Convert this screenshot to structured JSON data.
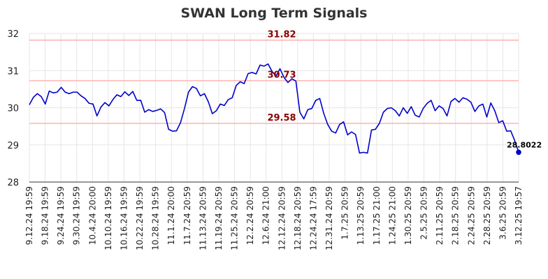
{
  "chart_data": {
    "type": "line",
    "title": "SWAN Long Term Signals",
    "xlabel": "",
    "ylabel": "",
    "ylim": [
      28,
      32
    ],
    "yticks": [
      "28",
      "29",
      "30",
      "31",
      "32"
    ],
    "xticks": [
      "9.12.24 19:59",
      "9.18.24 19:59",
      "9.24.24 19:59",
      "9.30.24 19:59",
      "10.4.24 20:00",
      "10.10.24 19:59",
      "10.16.24 19:59",
      "10.22.24 19:59",
      "10.28.24 19:59",
      "11.1.24 20:00",
      "11.7.24 20:59",
      "11.13.24 20:59",
      "11.19.24 20:59",
      "11.25.24 20:59",
      "12.2.24 20:59",
      "12.6.24 21:00",
      "12.12.24 20:59",
      "12.18.24 20:59",
      "12.24.24 17:59",
      "12.31.24 20:59",
      "1.7.25 20:59",
      "1.13.25 20:59",
      "1.17.25 21:00",
      "1.24.25 21:00",
      "1.30.25 20:59",
      "2.5.25 20:59",
      "2.11.25 20:59",
      "2.18.25 20:59",
      "2.24.25 20:59",
      "2.28.25 20:59",
      "3.6.25 20:59",
      "3.12.25 19:57"
    ],
    "grid": true,
    "legend": "none",
    "horizontal_lines": [
      {
        "value": 31.82,
        "label": "31.82",
        "color": "#ffb3b3"
      },
      {
        "value": 30.73,
        "label": "30.73",
        "color": "#ffb3b3"
      },
      {
        "value": 29.58,
        "label": "29.58",
        "color": "#ffb3b3"
      }
    ],
    "last_point_label": "28.8022",
    "series": [
      {
        "color": "#0000cc",
        "values": [
          30.08,
          30.28,
          30.38,
          30.3,
          30.1,
          30.45,
          30.4,
          30.42,
          30.55,
          30.42,
          30.38,
          30.42,
          30.42,
          30.32,
          30.25,
          30.12,
          30.1,
          29.78,
          30.02,
          30.14,
          30.05,
          30.22,
          30.35,
          30.3,
          30.43,
          30.33,
          30.44,
          30.2,
          30.2,
          29.88,
          29.95,
          29.9,
          29.93,
          29.97,
          29.87,
          29.42,
          29.37,
          29.38,
          29.6,
          29.98,
          30.42,
          30.57,
          30.52,
          30.32,
          30.38,
          30.16,
          29.84,
          29.92,
          30.1,
          30.06,
          30.22,
          30.27,
          30.6,
          30.7,
          30.65,
          30.92,
          30.95,
          30.91,
          31.15,
          31.12,
          31.18,
          30.98,
          30.85,
          31.05,
          30.82,
          30.68,
          30.78,
          30.72,
          29.88,
          29.7,
          29.95,
          29.98,
          30.2,
          30.25,
          29.85,
          29.55,
          29.37,
          29.32,
          29.55,
          29.62,
          29.27,
          29.35,
          29.28,
          28.78,
          28.8,
          28.78,
          29.4,
          29.42,
          29.58,
          29.88,
          29.98,
          30.0,
          29.92,
          29.78,
          30.0,
          29.85,
          30.03,
          29.8,
          29.75,
          29.98,
          30.12,
          30.2,
          29.92,
          30.05,
          29.98,
          29.78,
          30.17,
          30.25,
          30.15,
          30.27,
          30.23,
          30.15,
          29.9,
          30.05,
          30.1,
          29.75,
          30.13,
          29.92,
          29.6,
          29.65,
          29.37,
          29.38,
          29.12,
          28.8022
        ]
      }
    ]
  }
}
